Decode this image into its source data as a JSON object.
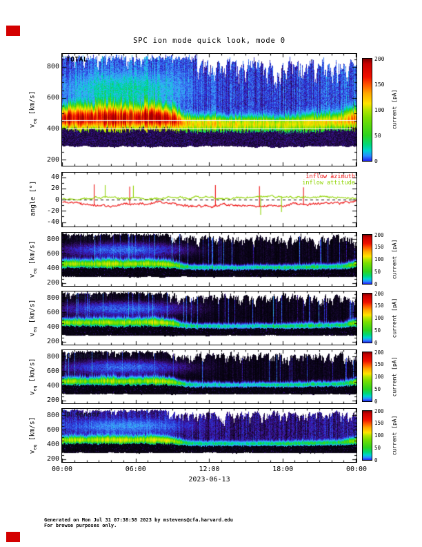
{
  "title": "SPC ion mode quick look, mode 0",
  "corner_marker_color": "#d40000",
  "xaxis": {
    "tick_labels": [
      "00:00",
      "06:00",
      "12:00",
      "18:00",
      "00:00"
    ],
    "tick_hours": [
      0,
      6,
      12,
      18,
      24
    ],
    "date_label": "2023-06-13",
    "hours_span": 24
  },
  "footer": {
    "line1": "Generated on Mon Jul 31 07:38:58 2023 by mstevens@cfa.harvard.edu",
    "line2": "For browse purposes only."
  },
  "speed_axis": {
    "pre": "v",
    "sub": "eq",
    "post": " [km/s]"
  },
  "colorbar": {
    "label": "current [pA]",
    "ticks": [
      0,
      50,
      100,
      150,
      200
    ],
    "range": [
      0,
      200
    ],
    "gradient": [
      [
        0,
        "#2222ee"
      ],
      [
        0.05,
        "#2a8cff"
      ],
      [
        0.1,
        "#00d2d2"
      ],
      [
        0.16,
        "#00d878"
      ],
      [
        0.25,
        "#2cd31f"
      ],
      [
        0.42,
        "#7ade00"
      ],
      [
        0.5,
        "#b4e600"
      ],
      [
        0.56,
        "#ffe400"
      ],
      [
        0.66,
        "#ffa800"
      ],
      [
        0.74,
        "#ff5a00"
      ],
      [
        0.82,
        "#f01000"
      ],
      [
        0.95,
        "#c80000"
      ],
      [
        1,
        "#7a0000"
      ]
    ]
  },
  "colormap_stops": [
    [
      0,
      "#000000"
    ],
    [
      1.2,
      "#0d0520"
    ],
    [
      2.5,
      "#2a0c57"
    ],
    [
      4,
      "#3d14a0"
    ],
    [
      6,
      "#2b2bd0"
    ],
    [
      9,
      "#2f5ce8"
    ],
    [
      13,
      "#3f8cfa"
    ],
    [
      18,
      "#37b6f5"
    ],
    [
      24,
      "#00d2cd"
    ],
    [
      32,
      "#00d488"
    ],
    [
      42,
      "#27d327"
    ],
    [
      58,
      "#6cdc00"
    ],
    [
      80,
      "#b4e600"
    ],
    [
      100,
      "#ffe400"
    ],
    [
      125,
      "#ffa500"
    ],
    [
      155,
      "#ff4e00"
    ],
    [
      185,
      "#e60000"
    ],
    [
      230,
      "#9b0000"
    ]
  ],
  "no_data_color": "#ffffff",
  "chart_data": [
    {
      "type": "heatmap",
      "id": "total",
      "panel_label": "TOTAL",
      "ylabel": "veq [km/s]",
      "ylim": [
        160,
        885
      ],
      "yticks": [
        200,
        400,
        600,
        800
      ],
      "yminor_step": 50,
      "style": "total",
      "seed": 7,
      "colorbar": true,
      "beam": {
        "center_kms_hourly": [
          465,
          470,
          468,
          472,
          470,
          468,
          470,
          472,
          470,
          458,
          436,
          430,
          432,
          430,
          428,
          430,
          432,
          430,
          428,
          432,
          436,
          440,
          442,
          448,
          466
        ],
        "amp_pa_hourly": [
          185,
          195,
          170,
          185,
          200,
          190,
          180,
          195,
          200,
          180,
          110,
          95,
          90,
          95,
          88,
          85,
          90,
          80,
          85,
          80,
          86,
          90,
          95,
          102,
          150
        ],
        "width_kms_hourly": [
          44,
          46,
          44,
          48,
          50,
          48,
          46,
          48,
          46,
          40,
          32,
          30,
          30,
          30,
          28,
          30,
          30,
          28,
          30,
          31,
          33,
          32,
          32,
          34,
          40
        ],
        "jitter_kms": 16
      },
      "background_pa_hourly": [
        9,
        10,
        9,
        11,
        10,
        9,
        10,
        11,
        10,
        9,
        8,
        7,
        8,
        7,
        7,
        8,
        7,
        6,
        7,
        7,
        8,
        8,
        9,
        9,
        10
      ],
      "patch": {
        "h_center": 5,
        "h_sigma": 3,
        "v_center": 660,
        "v_sigma": 60,
        "amp_pa": 18
      },
      "white_lines_kms": [
        400,
        452
      ]
    },
    {
      "type": "line",
      "id": "inflow-angles",
      "ylabel": "angle [°]",
      "ylim": [
        -48,
        48
      ],
      "yticks": [
        -40,
        -20,
        0,
        20,
        40
      ],
      "yminor_step": 10,
      "zero_line_dashed": true,
      "series": [
        {
          "name": "inflow azimuth",
          "color": "#ee1111",
          "seed": 21,
          "noise_deg": 3.0,
          "hourly_deg": [
            -4,
            -5,
            -7,
            -12,
            -13,
            -9,
            -8,
            -6,
            -5,
            -5,
            -10,
            -12,
            -12,
            -10,
            -9,
            -10,
            -13,
            -12,
            -10,
            -8,
            -9,
            -7,
            -7,
            -6,
            -4
          ],
          "spikes": [
            {
              "h": 2.6,
              "deg": 27
            },
            {
              "h": 5.5,
              "deg": 23
            },
            {
              "h": 12.5,
              "deg": 26
            },
            {
              "h": 16.1,
              "deg": 24
            },
            {
              "h": 19.7,
              "deg": 22
            }
          ]
        },
        {
          "name": "inflow attitude",
          "color": "#8fd400",
          "seed": 22,
          "noise_deg": 2.4,
          "hourly_deg": [
            2,
            2,
            3,
            4,
            3,
            4,
            3,
            2,
            2,
            3,
            3,
            5,
            5,
            3,
            2,
            3,
            4,
            6,
            4,
            3,
            6,
            5,
            3,
            2,
            2
          ],
          "spikes": [
            {
              "h": 3.5,
              "deg": 26
            },
            {
              "h": 5.8,
              "deg": 25
            },
            {
              "h": 16.2,
              "deg": -27
            },
            {
              "h": 17.9,
              "deg": -22
            }
          ]
        }
      ]
    },
    {
      "type": "heatmap",
      "id": "sensor-a",
      "panel_label": "A sensor",
      "ylabel": "veq [km/s]",
      "ylim": [
        160,
        885
      ],
      "yticks": [
        200,
        400,
        600,
        800
      ],
      "yminor_step": 50,
      "style": "sensor",
      "seed": 31,
      "colorbar": true,
      "beam": {
        "center_kms_hourly": [
          458,
          462,
          460,
          464,
          462,
          460,
          462,
          464,
          462,
          450,
          420,
          412,
          414,
          412,
          410,
          412,
          415,
          412,
          410,
          414,
          418,
          420,
          422,
          428,
          455
        ],
        "amp_pa_hourly": [
          68,
          75,
          62,
          70,
          80,
          74,
          68,
          75,
          80,
          70,
          38,
          30,
          28,
          30,
          27,
          25,
          30,
          34,
          36,
          34,
          37,
          35,
          33,
          40,
          65
        ],
        "width_kms_hourly": [
          30,
          32,
          30,
          33,
          34,
          32,
          31,
          33,
          32,
          28,
          22,
          20,
          20,
          20,
          19,
          20,
          20,
          19,
          20,
          21,
          22,
          21,
          21,
          23,
          28
        ],
        "jitter_kms": 14
      },
      "background_pa_hourly": [
        0.9
      ],
      "patch": {
        "h_center": 5,
        "h_sigma": 3,
        "v_center": 650,
        "v_sigma": 55,
        "amp_pa": 9
      }
    },
    {
      "type": "heatmap",
      "id": "sensor-b",
      "panel_label": "B sensor",
      "ylabel": "veq [km/s]",
      "ylim": [
        160,
        885
      ],
      "yticks": [
        200,
        400,
        600,
        800
      ],
      "yminor_step": 50,
      "style": "sensor",
      "seed": 41,
      "colorbar": true,
      "beam": {
        "center_kms_hourly": [
          458,
          462,
          460,
          464,
          462,
          460,
          462,
          464,
          462,
          450,
          420,
          412,
          414,
          412,
          410,
          412,
          415,
          412,
          410,
          414,
          418,
          420,
          422,
          428,
          455
        ],
        "amp_pa_hourly": [
          66,
          72,
          60,
          68,
          78,
          72,
          66,
          73,
          78,
          68,
          36,
          29,
          27,
          29,
          26,
          24,
          29,
          33,
          35,
          33,
          36,
          34,
          32,
          38,
          62
        ],
        "width_kms_hourly": [
          30,
          32,
          30,
          33,
          34,
          32,
          31,
          33,
          32,
          28,
          22,
          20,
          20,
          20,
          19,
          20,
          20,
          19,
          20,
          21,
          22,
          21,
          21,
          23,
          28
        ],
        "jitter_kms": 14
      },
      "background_pa_hourly": [
        0.9
      ],
      "patch": {
        "h_center": 5,
        "h_sigma": 3,
        "v_center": 650,
        "v_sigma": 55,
        "amp_pa": 9
      }
    },
    {
      "type": "heatmap",
      "id": "sensor-c",
      "panel_label": "C sensor",
      "ylabel": "veq [km/s]",
      "ylim": [
        160,
        885
      ],
      "yticks": [
        200,
        400,
        600,
        800
      ],
      "yminor_step": 50,
      "style": "sensor",
      "seed": 51,
      "colorbar": true,
      "beam": {
        "center_kms_hourly": [
          458,
          462,
          460,
          464,
          462,
          460,
          462,
          464,
          462,
          450,
          420,
          412,
          414,
          412,
          410,
          412,
          415,
          412,
          410,
          414,
          418,
          420,
          422,
          428,
          455
        ],
        "amp_pa_hourly": [
          64,
          70,
          58,
          66,
          76,
          70,
          64,
          71,
          76,
          66,
          35,
          28,
          26,
          28,
          25,
          23,
          28,
          32,
          34,
          32,
          35,
          33,
          31,
          37,
          60
        ],
        "width_kms_hourly": [
          30,
          32,
          30,
          33,
          34,
          32,
          31,
          33,
          32,
          28,
          22,
          20,
          20,
          20,
          19,
          20,
          20,
          19,
          20,
          21,
          22,
          21,
          21,
          23,
          28
        ],
        "jitter_kms": 14
      },
      "background_pa_hourly": [
        0.9
      ],
      "patch": {
        "h_center": 5,
        "h_sigma": 3,
        "v_center": 650,
        "v_sigma": 55,
        "amp_pa": 9
      }
    },
    {
      "type": "heatmap",
      "id": "sensor-d",
      "panel_label": "D sensor",
      "ylabel": "veq [km/s]",
      "ylim": [
        160,
        885
      ],
      "yticks": [
        200,
        400,
        600,
        800
      ],
      "yminor_step": 50,
      "style": "dsensor",
      "seed": 61,
      "colorbar": true,
      "beam": {
        "center_kms_hourly": [
          458,
          462,
          460,
          464,
          462,
          460,
          462,
          464,
          462,
          450,
          420,
          412,
          414,
          412,
          410,
          412,
          415,
          412,
          410,
          414,
          418,
          420,
          422,
          428,
          455
        ],
        "amp_pa_hourly": [
          70,
          76,
          64,
          72,
          82,
          75,
          70,
          76,
          82,
          72,
          40,
          32,
          30,
          32,
          28,
          26,
          32,
          36,
          38,
          36,
          39,
          37,
          35,
          42,
          66
        ],
        "width_kms_hourly": [
          30,
          32,
          30,
          33,
          34,
          32,
          31,
          33,
          32,
          28,
          22,
          20,
          20,
          20,
          19,
          20,
          20,
          19,
          20,
          21,
          22,
          21,
          21,
          23,
          28
        ],
        "jitter_kms": 14
      },
      "background_pa_hourly": [
        4,
        4.5,
        4,
        4,
        4.5,
        4,
        4,
        4.5,
        4,
        4,
        3.5,
        3.5,
        3.5,
        3,
        3.5,
        3,
        3,
        3.5,
        3,
        3.5,
        3.5,
        4,
        4,
        4,
        4
      ],
      "patch": {
        "h_center": 5,
        "h_sigma": 3,
        "v_center": 650,
        "v_sigma": 55,
        "amp_pa": 10
      }
    }
  ]
}
